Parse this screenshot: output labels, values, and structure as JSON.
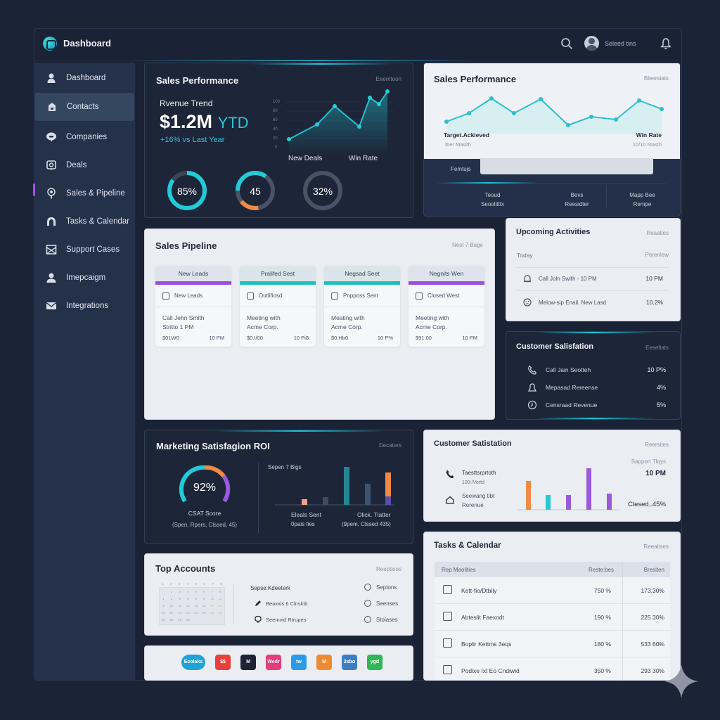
{
  "app": {
    "title": "Dashboard",
    "user_label": "Seleed tins"
  },
  "sidebar": {
    "items": [
      {
        "label": "Dashboard",
        "icon": "person-icon"
      },
      {
        "label": "Contacts",
        "icon": "contact-card-icon",
        "active": true
      },
      {
        "label": "Companies",
        "icon": "chat-bubble-icon"
      },
      {
        "label": "Deals",
        "icon": "deal-icon"
      },
      {
        "label": "Sales & Pipeline",
        "icon": "pin-icon",
        "marker": true
      },
      {
        "label": "Tasks & Calendar",
        "icon": "headset-icon"
      },
      {
        "label": "Support Cases",
        "icon": "inbox-icon"
      },
      {
        "label": "Imepcaigm",
        "icon": "user-icon"
      },
      {
        "label": "Integrations",
        "icon": "mail-icon"
      }
    ]
  },
  "sales_performance_dark": {
    "title": "Sales Performance",
    "aux": "Eeemtoon",
    "revenue_label": "Rvenue Trend",
    "revenue_value": "$1.2M",
    "revenue_suffix": "YTD",
    "growth": "+16% vs Last Year",
    "y_ticks": [
      "100",
      "80",
      "60",
      "40",
      "20",
      "0"
    ],
    "x_labels": [
      "New Deals",
      "Win Rate"
    ],
    "donuts": [
      {
        "label": "85%",
        "value": 85,
        "color": "#22cbd8"
      },
      {
        "label": "45",
        "value": 45,
        "color": "#22cbd8",
        "accent": "#f08a44"
      },
      {
        "label": "32%",
        "value": 32,
        "color": "#4a5265"
      }
    ]
  },
  "sales_performance_light": {
    "title": "Sales Performance",
    "aux": "Bleersiats",
    "left_label": "Target.Ackieved",
    "left_sub": "Iber Masith",
    "right_label": "Win Rate",
    "right_sub": "10/10 Masth",
    "input_label": "Femtujs",
    "footer_cols": [
      {
        "line1": "Teoud",
        "line2": "Seoolitttx"
      },
      {
        "line1": "Bevs",
        "line2": "Reesidter"
      },
      {
        "line1": "Mapp Bee",
        "line2": "Rempe"
      }
    ]
  },
  "pipeline": {
    "title": "Sales Pipeline",
    "aux": "Nest 7 Bage",
    "columns": [
      {
        "header": "New Leads",
        "bar": "#9b4fd8",
        "sub": "New Leads",
        "body1": "Call Jehn Smith",
        "body2": "Stritto 1 PM",
        "amount": "$01W0",
        "time": "10 PM"
      },
      {
        "header": "Pralifed Sest",
        "bar": "#20bfbf",
        "sub": "Outlifiosd",
        "body1": "Meeting with",
        "body2": "Acme Corp.",
        "amount": "$0.I/00",
        "time": "10 Pi8"
      },
      {
        "header": "Negsad Seet",
        "bar": "#20bfbf",
        "sub": "Pnpposs Sent",
        "body1": "Meating with",
        "body2": "Acme Corp.",
        "amount": "$0.Hb0",
        "time": "10 P%"
      },
      {
        "header": "Negnits Wen",
        "bar": "#9b4fd8",
        "sub": "Closed West",
        "body1": "Meeting with",
        "body2": "Acme Corp.",
        "amount": "$91.00",
        "time": "10 PM"
      }
    ]
  },
  "upcoming": {
    "title": "Upcoming Activities",
    "aux": "Reaaties",
    "left_head": "Today",
    "right_head": "Perenlew",
    "rows": [
      {
        "text": "Call Joln Swith - 10 PM",
        "value": "10 PM",
        "icon": "alarm-icon"
      },
      {
        "text": "Melow-sip Enail. New Lasd",
        "value": "10.2%",
        "icon": "emoji-icon"
      }
    ]
  },
  "csat_dark": {
    "title": "Customer Salisfation",
    "aux": "Eeseltats",
    "rows": [
      {
        "text": "Call Jain Seotteh",
        "value": "10 P%",
        "icon": "phone-icon"
      },
      {
        "text": "Mepasad Rereense",
        "value": "4%",
        "icon": "bell-icon"
      },
      {
        "text": "Censraad Revenue",
        "value": "5%",
        "icon": "clock-icon"
      }
    ]
  },
  "marketing": {
    "title": "Marketing Satisfagion ROI",
    "aux": "Decaters",
    "gauge_value": "92%",
    "gauge_label": "CSAT Score",
    "gauge_sub": "(Spen, Rpers, Clssed, 45)",
    "bars_label": "Sepen 7 Bigs",
    "bars_left_1": "Eleals Sent",
    "bars_left_2": "0pais fies",
    "bars_right_1": "Olick. Tlatter",
    "bars_right_2": "(9pem. Clssed 435)"
  },
  "csat_light": {
    "title": "Customer Satistation",
    "aux": "Reersites",
    "item1_title": "Taesttsrprtoth",
    "item1_sub": "100:/Vortd",
    "item2_title": "Seewang tibt",
    "item2_sub": "Rerenue",
    "right_label": "Sapport Tlqys",
    "right_value": "10 PM",
    "right_bottom": "Clesed,.45%"
  },
  "top_accounts": {
    "title": "Top Accounts",
    "aux": "Reeptioos",
    "list_head": "Sepse:Kdeeterk",
    "list_items": [
      {
        "text": "Beaxxis 6 Clnsktit",
        "icon": "pen-icon"
      },
      {
        "text": "Seemvid Rtrupes",
        "icon": "badge-icon"
      }
    ],
    "radios": [
      "Septons",
      "Seenses",
      "Stoiases"
    ],
    "calendar": {
      "weekdays": [
        "1",
        "2",
        "3",
        "4",
        "5",
        "6",
        "7",
        "8"
      ],
      "rows": [
        [
          "",
          "2",
          "3",
          "4",
          "5",
          "6",
          "7",
          "8"
        ],
        [
          "1",
          "1",
          "8",
          "8",
          "8",
          "8",
          "11",
          "12"
        ],
        [
          "9",
          "10",
          "11",
          "12",
          "13",
          "12",
          "17",
          "14"
        ],
        [
          "16",
          "20",
          "15",
          "13",
          "23",
          "29",
          "22",
          "23"
        ],
        [
          "30",
          "28",
          "29",
          "30",
          "",
          "",
          "",
          ""
        ]
      ]
    }
  },
  "integrations": {
    "apps": [
      {
        "label": "Ecolaks",
        "color": "#1fa3d6",
        "wide": true
      },
      {
        "label": "$$",
        "color": "#e8403c"
      },
      {
        "label": "M",
        "color": "#1c2333"
      },
      {
        "label": "Wedr",
        "color": "#e63d7f"
      },
      {
        "label": "tw",
        "color": "#2a9be8"
      },
      {
        "label": "M",
        "color": "#f08a30"
      },
      {
        "label": "2sbo",
        "color": "#3d7fc4"
      },
      {
        "label": "ygd",
        "color": "#2fb656"
      }
    ]
  },
  "tasks": {
    "title": "Tasks & Calendar",
    "aux": "Reeatises",
    "headers": [
      "Rep Maolities",
      "Reste:bes",
      "Bresiten"
    ],
    "rows": [
      {
        "name": "Kett-fio/Dtbily",
        "col2": "750 %",
        "col3": "173.30%",
        "icon": "grid-icon"
      },
      {
        "name": "Abteslit Faexodt",
        "col2": "190 %",
        "col3": "225 30%",
        "icon": "checkbox-icon"
      },
      {
        "name": "Boplir Kettms 3eqs",
        "col2": "180 %",
        "col3": "533 60%",
        "icon": "checkbox-icon"
      },
      {
        "name": "Podixe Ixt Eo Cndiwid",
        "col2": "350 %",
        "col3": "293 30%",
        "icon": "grid-icon"
      }
    ]
  },
  "chart_data": [
    {
      "type": "line",
      "title": "Sales Performance - Revenue Trend",
      "y_ticks": [
        0,
        20,
        40,
        60,
        80,
        100
      ],
      "x_labels": [
        "New Deals",
        "Win Rate"
      ],
      "values": [
        20,
        42,
        70,
        38,
        92,
        85,
        105
      ]
    },
    {
      "type": "line",
      "title": "Sales Performance (light)",
      "values": [
        40,
        52,
        68,
        53,
        67,
        35,
        42,
        38,
        65,
        55
      ]
    },
    {
      "type": "bar",
      "title": "Marketing Satisfagion ROI - Sepen 7 Bigs",
      "values": [
        8,
        10,
        55,
        30,
        45
      ],
      "colors": [
        "#f4a090",
        "#3f4a66",
        "#268792",
        "#3d5470",
        "#f08a44"
      ]
    },
    {
      "type": "bar",
      "title": "Customer Satistation",
      "values": [
        40,
        20,
        20,
        58,
        22
      ],
      "colors": [
        "#f08a44",
        "#26c8cf",
        "#9b5ad8",
        "#9b5ad8",
        "#9b5ad8"
      ]
    }
  ]
}
